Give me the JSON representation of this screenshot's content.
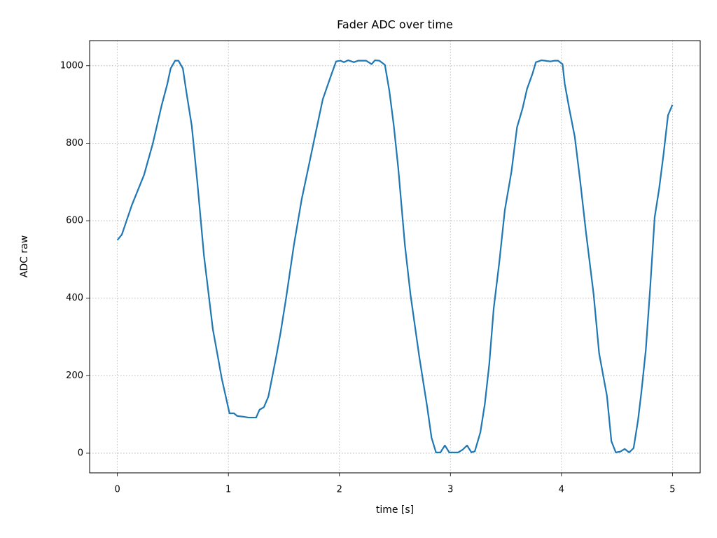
{
  "chart_data": {
    "type": "line",
    "title": "Fader ADC over time",
    "x_label": "time [s]",
    "y_label": "ADC raw",
    "x": [
      0,
      0.04,
      0.13,
      0.24,
      0.32,
      0.4,
      0.45,
      0.48,
      0.52,
      0.55,
      0.59,
      0.62,
      0.67,
      0.72,
      0.78,
      0.86,
      0.9,
      0.94,
      1.01,
      1.05,
      1.08,
      1.14,
      1.18,
      1.25,
      1.28,
      1.32,
      1.36,
      1.43,
      1.47,
      1.52,
      1.59,
      1.66,
      1.73,
      1.79,
      1.85,
      1.92,
      1.97,
      2.01,
      2.04,
      2.08,
      2.13,
      2.17,
      2.24,
      2.29,
      2.32,
      2.36,
      2.41,
      2.45,
      2.49,
      2.53,
      2.59,
      2.64,
      2.72,
      2.79,
      2.83,
      2.87,
      2.91,
      2.95,
      2.99,
      3.04,
      3.07,
      3.11,
      3.15,
      3.19,
      3.22,
      3.27,
      3.31,
      3.35,
      3.39,
      3.44,
      3.49,
      3.55,
      3.6,
      3.65,
      3.69,
      3.74,
      3.77,
      3.82,
      3.85,
      3.9,
      3.94,
      3.97,
      4.01,
      4.03,
      4.07,
      4.12,
      4.17,
      4.22,
      4.29,
      4.34,
      4.41,
      4.45,
      4.49,
      4.53,
      4.57,
      4.61,
      4.65,
      4.69,
      4.72,
      4.76,
      4.8,
      4.84,
      4.88,
      4.92,
      4.96,
      5
    ],
    "values": [
      550,
      564,
      640,
      718,
      800,
      899,
      953,
      993,
      1013,
      1013,
      993,
      935,
      845,
      700,
      510,
      320,
      257,
      193,
      103,
      103,
      96,
      94,
      92,
      92,
      112,
      119,
      146,
      248,
      311,
      401,
      537,
      655,
      750,
      832,
      913,
      971,
      1011,
      1013,
      1009,
      1014,
      1009,
      1013,
      1013,
      1004,
      1014,
      1013,
      1002,
      935,
      845,
      736,
      537,
      410,
      248,
      121,
      40,
      2,
      2,
      20,
      2,
      2,
      2,
      9,
      20,
      2,
      5,
      54,
      127,
      230,
      374,
      492,
      627,
      727,
      841,
      890,
      940,
      980,
      1009,
      1014,
      1013,
      1011,
      1013,
      1013,
      1004,
      953,
      890,
      817,
      700,
      573,
      410,
      257,
      148,
      31,
      2,
      4,
      11,
      2,
      13,
      85,
      157,
      266,
      429,
      609,
      682,
      772,
      872,
      899
    ],
    "color": "#1f77b4",
    "xlim": [
      -0.25,
      5.25
    ],
    "xticks": [
      0,
      1,
      2,
      3,
      4,
      5
    ],
    "ylim": [
      -50.7,
      1064.7
    ],
    "yticks": [
      0,
      200,
      400,
      600,
      800,
      1000
    ],
    "grid": true
  }
}
